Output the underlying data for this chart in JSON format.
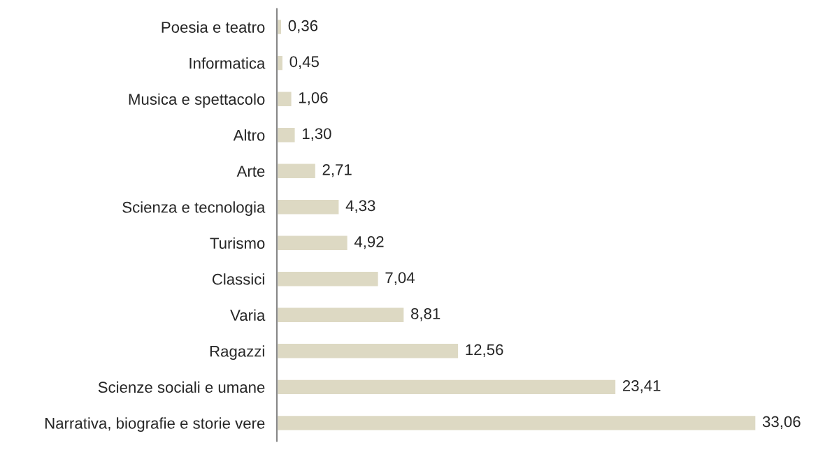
{
  "chart_data": {
    "type": "bar",
    "orientation": "horizontal",
    "categories": [
      "Poesia e teatro",
      "Informatica",
      "Musica e spettacolo",
      "Altro",
      "Arte",
      "Scienza e tecnologia",
      "Turismo",
      "Classici",
      "Varia",
      "Ragazzi",
      "Scienze sociali e umane",
      "Narrativa, biografie e storie vere"
    ],
    "values": [
      0.36,
      0.45,
      1.06,
      1.3,
      2.71,
      4.33,
      4.92,
      7.04,
      8.81,
      12.56,
      23.41,
      33.06
    ],
    "value_labels": [
      "0,36",
      "0,45",
      "1,06",
      "1,30",
      "2,71",
      "4,33",
      "4,92",
      "7,04",
      "8,81",
      "12,56",
      "23,41",
      "33,06"
    ],
    "color": "#ddd9c3",
    "grid": false,
    "legend": false
  }
}
